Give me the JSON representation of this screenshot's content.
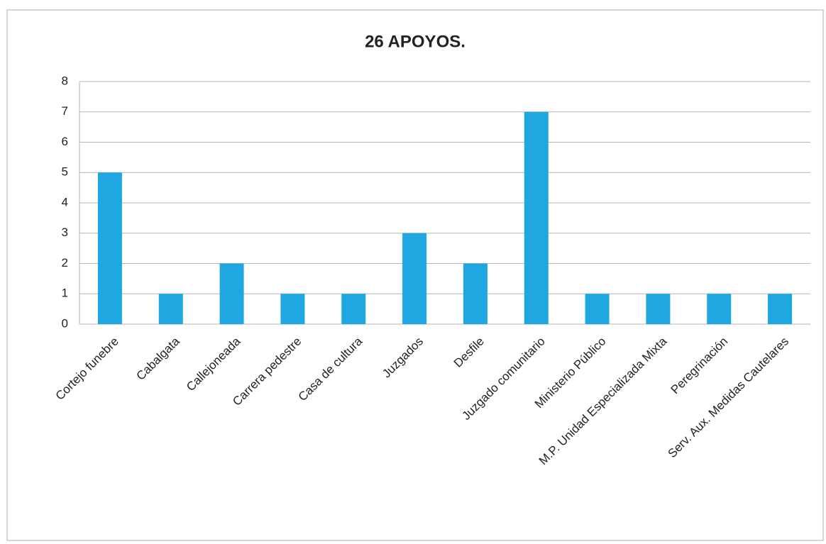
{
  "chart_data": {
    "type": "bar",
    "title": "26 APOYOS.",
    "categories": [
      "Cortejo funebre",
      "Cabalgata",
      "Callejoneada",
      "Carrera pedestre",
      "Casa de cultura",
      "Juzgados",
      "Desfile",
      "Juzgado comunitario",
      "Ministerio Público",
      "M.P. Unidad Especializada Mixta",
      "Peregrinación",
      "Serv. Aux. Medidas Cautelares"
    ],
    "values": [
      5,
      1,
      2,
      1,
      1,
      3,
      2,
      7,
      1,
      1,
      1,
      1
    ],
    "color": "#1ea7e1",
    "ylim": [
      0,
      8
    ],
    "yticks": [
      0,
      1,
      2,
      3,
      4,
      5,
      6,
      7,
      8
    ],
    "grid": true
  }
}
